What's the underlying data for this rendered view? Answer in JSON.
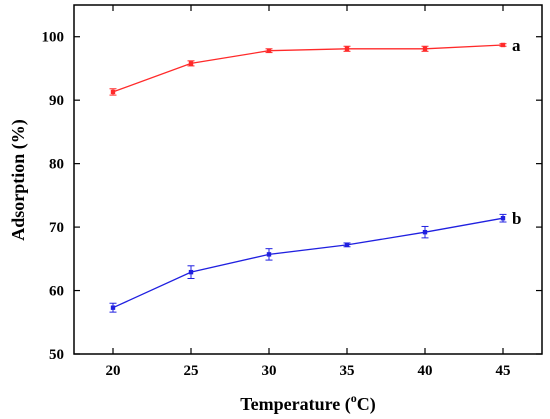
{
  "chart_data": {
    "type": "line",
    "xlabel": "Temperature (",
    "xlabel_sup": "o",
    "xlabel_tail": "C)",
    "ylabel": "Adsorption (%)",
    "xlim": [
      17.5,
      47.5
    ],
    "ylim": [
      50,
      105
    ],
    "x_ticks": [
      20,
      25,
      30,
      35,
      40,
      45
    ],
    "y_ticks": [
      50,
      60,
      70,
      80,
      90,
      100
    ],
    "x": [
      20,
      25,
      30,
      35,
      40,
      45
    ],
    "grid": false,
    "series": [
      {
        "name": "a",
        "color": "#ff2a2a",
        "values": [
          91.3,
          95.8,
          97.8,
          98.1,
          98.1,
          98.7
        ],
        "errors": [
          0.5,
          0.4,
          0.3,
          0.4,
          0.4,
          0.2
        ]
      },
      {
        "name": "b",
        "color": "#2020e0",
        "values": [
          57.3,
          62.9,
          65.7,
          67.2,
          69.2,
          71.4
        ],
        "errors": [
          0.7,
          1.0,
          0.9,
          0.3,
          0.9,
          0.6
        ]
      }
    ]
  }
}
